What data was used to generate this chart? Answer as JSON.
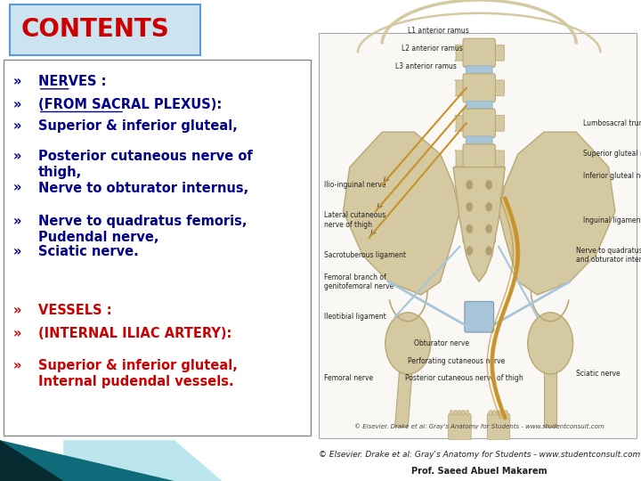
{
  "title": "CONTENTS",
  "title_color": "#CC0000",
  "title_bg_color": "#cce4f0",
  "title_border_color": "#5b9bd5",
  "bg_color": "#ffffff",
  "left_border_color": "#888888",
  "bottom_bg_color": "#1a8a9a",
  "bottom_accent1": "#0d6b7a",
  "bottom_accent2": "#000000",
  "bottom_light": "#7acfdf",
  "nerves_texts": [
    "NERVES :",
    "(FROM SACRAL PLEXUS):",
    "Superior & inferior gluteal,",
    "Posterior cutaneous nerve of\nthigh,",
    "Nerve to obturator internus,",
    "Nerve to quadratus femoris,\nPudendal nerve,",
    "Sciatic nerve."
  ],
  "nerves_colors": [
    "#00008B",
    "#00008B",
    "#00008B",
    "#00008B",
    "#00008B",
    "#00008B",
    "#00008B"
  ],
  "nerves_underline": [
    true,
    true,
    false,
    false,
    false,
    false,
    false
  ],
  "vessels_texts": [
    "VESSELS :",
    "(INTERNAL ILIAC ARTERY):",
    "Superior & inferior gluteal,\nInternal pudendal vessels."
  ],
  "vessels_colors": [
    "#CC0000",
    "#CC0000",
    "#CC0000"
  ],
  "vessels_underline": [
    true,
    true,
    false
  ],
  "footer_line1": "© Elsevier. Drake et al: Gray's Anatomy for Students - www.studentconsult.com",
  "footer_line2": "Prof. Saeed Abuel Makarem",
  "footer_color": "#222222",
  "bone_color": "#d4c9a0",
  "bone_dark": "#b8a878",
  "nerve_color": "#c8922a",
  "ligament_color": "#a8c4d8",
  "font_size_title": 20,
  "font_size_body": 10.5,
  "font_size_footer": 6.5,
  "font_size_label": 5.5
}
